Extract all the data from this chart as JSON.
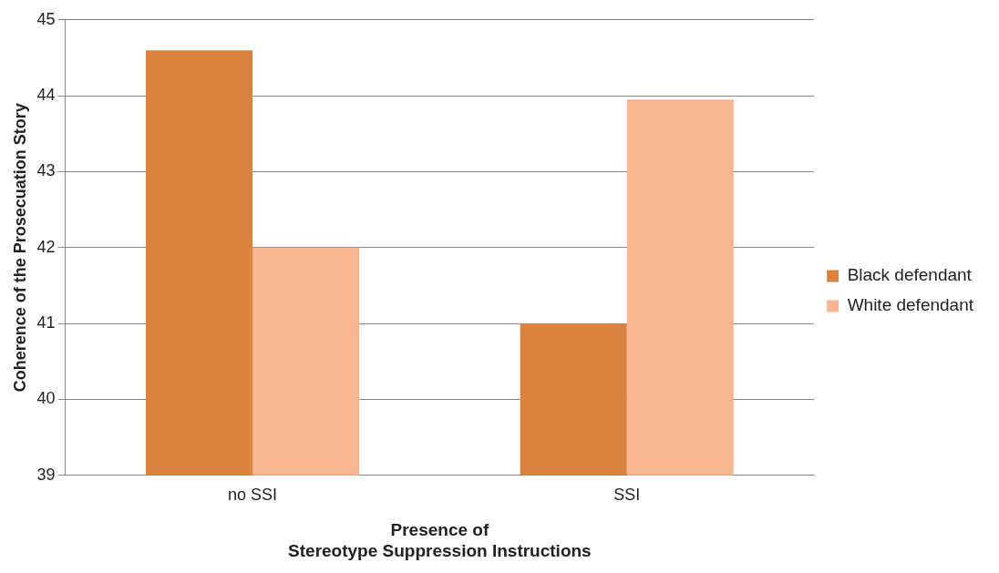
{
  "chart_data": {
    "type": "bar",
    "xlabel": "Presence of\nStereotype Suppression Instructions",
    "ylabel": "Coherence of the Prosecuation Story",
    "categories": [
      "no SSI",
      "SSI"
    ],
    "series": [
      {
        "name": "Black defendant",
        "color": "#d9833e",
        "values": [
          44.6,
          41.0
        ]
      },
      {
        "name": "White defendant",
        "color": "#f8b58f",
        "values": [
          42.0,
          43.95
        ]
      }
    ],
    "ylim": [
      39,
      45
    ],
    "yticks": [
      39,
      40,
      41,
      42,
      43,
      44,
      45
    ],
    "grid": "y",
    "legend": "right"
  }
}
